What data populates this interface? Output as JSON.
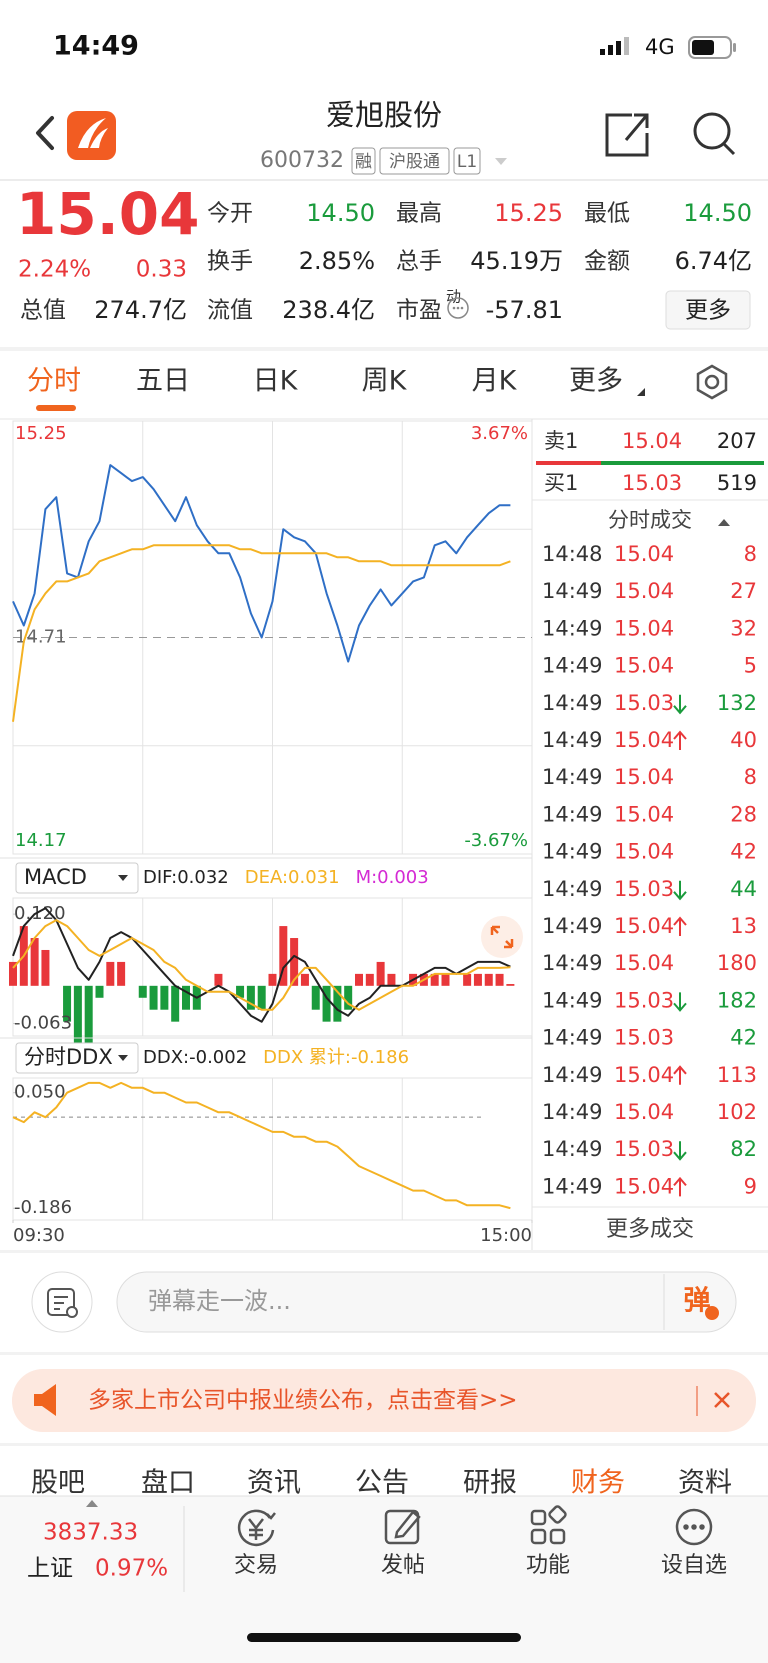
{
  "status": {
    "time": "14:49",
    "network": "4G"
  },
  "header": {
    "title": "爱旭股份",
    "code": "600732",
    "tags": [
      "融",
      "沪股通",
      "L1"
    ]
  },
  "quote": {
    "price": "15.04",
    "change_pct": "2.24%",
    "change": "0.33",
    "stats": [
      {
        "label": "今开",
        "value": "14.50",
        "color": "#1a9b3c"
      },
      {
        "label": "最高",
        "value": "15.25",
        "color": "#e8373a"
      },
      {
        "label": "最低",
        "value": "14.50",
        "color": "#1a9b3c"
      },
      {
        "label": "换手",
        "value": "2.85%"
      },
      {
        "label": "总手",
        "value": "45.19万"
      },
      {
        "label": "金额",
        "value": "6.74亿"
      },
      {
        "label": "总值",
        "value": "274.7亿"
      },
      {
        "label": "流值",
        "value": "238.4亿"
      },
      {
        "label": "市盈",
        "sup": "动",
        "value": "-57.81"
      }
    ],
    "more": "更多"
  },
  "tabs": [
    "分时",
    "五日",
    "日K",
    "周K",
    "月K",
    "更多"
  ],
  "chart_data": [
    {
      "type": "line",
      "x": [
        0,
        5,
        10,
        15,
        20,
        25,
        30,
        35,
        40,
        45,
        50,
        55,
        60,
        65,
        70,
        75,
        80,
        85,
        90,
        95,
        100,
        105,
        110,
        115,
        120,
        125,
        130,
        135,
        140,
        145,
        150,
        155,
        160,
        165,
        170,
        175,
        180,
        185,
        190,
        195,
        200,
        205,
        210,
        215,
        220,
        225,
        230
      ],
      "xlim": [
        0,
        240
      ],
      "xgrid": [
        60,
        120,
        180
      ],
      "ylim": [
        14.17,
        15.25
      ],
      "yticks": [
        15.25,
        14.71,
        14.17
      ],
      "ygrid": [
        14.98,
        14.44
      ],
      "y2lim": [
        -3.67,
        3.67
      ],
      "y2ticks": [
        {
          "value": 3.67,
          "label": "3.67%"
        },
        {
          "value": -3.67,
          "label": "-3.67%"
        }
      ],
      "series": [
        {
          "color": "#2f6fc6",
          "values": [
            14.8,
            14.74,
            14.82,
            15.03,
            15.06,
            14.87,
            14.86,
            14.95,
            15.0,
            15.14,
            15.12,
            15.1,
            15.11,
            15.08,
            15.04,
            15.0,
            15.06,
            14.99,
            14.95,
            14.92,
            14.92,
            14.86,
            14.77,
            14.71,
            14.8,
            14.98,
            14.96,
            14.95,
            14.92,
            14.82,
            14.74,
            14.65,
            14.74,
            14.79,
            14.83,
            14.79,
            14.82,
            14.85,
            14.86,
            14.94,
            14.95,
            14.92,
            14.96,
            14.99,
            15.02,
            15.04,
            15.04
          ]
        },
        {
          "color": "#f4b223",
          "values": [
            14.5,
            14.7,
            14.78,
            14.82,
            14.85,
            14.85,
            14.86,
            14.87,
            14.9,
            14.91,
            14.92,
            14.93,
            14.93,
            14.94,
            14.94,
            14.94,
            14.94,
            14.94,
            14.94,
            14.94,
            14.94,
            14.93,
            14.93,
            14.92,
            14.92,
            14.92,
            14.92,
            14.92,
            14.92,
            14.92,
            14.91,
            14.91,
            14.9,
            14.9,
            14.9,
            14.89,
            14.89,
            14.89,
            14.89,
            14.89,
            14.89,
            14.89,
            14.89,
            14.89,
            14.89,
            14.89,
            14.9
          ]
        }
      ]
    },
    {
      "type": "macd",
      "selector": "MACD",
      "legend": [
        {
          "text": "DIF:0.032",
          "color": "#222222"
        },
        {
          "text": "DEA:0.031",
          "color": "#f4b223"
        },
        {
          "text": "M:0.003",
          "color": "#d42ad4"
        }
      ],
      "x": [
        0,
        5,
        10,
        15,
        20,
        25,
        30,
        35,
        40,
        45,
        50,
        55,
        60,
        65,
        70,
        75,
        80,
        85,
        90,
        95,
        100,
        105,
        110,
        115,
        120,
        125,
        130,
        135,
        140,
        145,
        150,
        155,
        160,
        165,
        170,
        175,
        180,
        185,
        190,
        195,
        200,
        205,
        210,
        215,
        220,
        225,
        230
      ],
      "xlim": [
        0,
        240
      ],
      "xgrid": [
        60,
        120,
        180
      ],
      "ylim": [
        -0.084,
        0.147
      ],
      "yticks": [
        {
          "value": 0.12,
          "label": "0.120"
        },
        -0.063
      ],
      "bars": {
        "up_color": "#e8373a",
        "down_color": "#1a9b3c",
        "values": [
          0.04,
          0.1,
          0.08,
          0.06,
          0.0,
          -0.06,
          -0.1,
          -0.1,
          -0.02,
          0.04,
          0.04,
          0.0,
          -0.02,
          -0.04,
          -0.04,
          -0.06,
          -0.04,
          -0.04,
          0.0,
          0.02,
          0.0,
          -0.02,
          -0.04,
          -0.04,
          0.02,
          0.1,
          0.08,
          0.02,
          -0.04,
          -0.06,
          -0.06,
          -0.04,
          0.02,
          0.02,
          0.04,
          0.02,
          0.0,
          0.02,
          0.02,
          0.02,
          0.02,
          0.0,
          0.02,
          0.02,
          0.02,
          0.02,
          0.003
        ]
      },
      "series": [
        {
          "color": "#222222",
          "values": [
            0.05,
            0.1,
            0.12,
            0.13,
            0.11,
            0.07,
            0.03,
            0.01,
            0.04,
            0.08,
            0.09,
            0.08,
            0.06,
            0.04,
            0.02,
            0.0,
            -0.01,
            -0.02,
            -0.01,
            0.0,
            -0.01,
            -0.03,
            -0.05,
            -0.06,
            -0.03,
            0.03,
            0.05,
            0.04,
            0.01,
            -0.02,
            -0.04,
            -0.05,
            -0.03,
            -0.02,
            0.0,
            0.0,
            0.0,
            0.01,
            0.02,
            0.03,
            0.03,
            0.02,
            0.03,
            0.04,
            0.04,
            0.04,
            0.032
          ]
        },
        {
          "color": "#f4b223",
          "values": [
            0.03,
            0.05,
            0.08,
            0.1,
            0.11,
            0.1,
            0.08,
            0.06,
            0.05,
            0.06,
            0.07,
            0.08,
            0.07,
            0.06,
            0.04,
            0.03,
            0.01,
            0.0,
            -0.01,
            -0.01,
            -0.01,
            -0.02,
            -0.03,
            -0.04,
            -0.04,
            -0.02,
            0.01,
            0.03,
            0.03,
            0.01,
            -0.01,
            -0.03,
            -0.04,
            -0.03,
            -0.02,
            -0.01,
            0.0,
            0.0,
            0.01,
            0.02,
            0.02,
            0.02,
            0.02,
            0.03,
            0.03,
            0.03,
            0.031
          ]
        }
      ]
    },
    {
      "type": "ddx",
      "selector": "分时DDX",
      "legend": [
        {
          "text": "DDX:-0.002",
          "color": "#222222"
        },
        {
          "text": "DDX 累计:-0.186",
          "color": "#f4b223"
        }
      ],
      "x": [
        0,
        5,
        10,
        15,
        20,
        25,
        30,
        35,
        40,
        45,
        50,
        55,
        60,
        65,
        70,
        75,
        80,
        85,
        90,
        95,
        100,
        105,
        110,
        115,
        120,
        125,
        130,
        135,
        140,
        145,
        150,
        155,
        160,
        165,
        170,
        175,
        180,
        185,
        190,
        195,
        200,
        205,
        210,
        215,
        220,
        225,
        230
      ],
      "xlim": [
        0,
        240
      ],
      "xgrid": [
        60,
        120,
        180
      ],
      "xticks": [
        {
          "value": 0,
          "label": "09:30"
        },
        {
          "value": 240,
          "label": "15:00"
        }
      ],
      "ylim": [
        -0.21,
        0.08
      ],
      "yticks": [
        {
          "value": 0.05,
          "label": "0.050"
        },
        -0.186
      ],
      "series": [
        {
          "color": "#f4b223",
          "values": [
            0.0,
            -0.01,
            0.01,
            0.0,
            0.02,
            0.05,
            0.06,
            0.07,
            0.07,
            0.06,
            0.07,
            0.06,
            0.06,
            0.05,
            0.05,
            0.04,
            0.03,
            0.03,
            0.02,
            0.01,
            0.01,
            0.0,
            -0.01,
            -0.02,
            -0.03,
            -0.03,
            -0.04,
            -0.04,
            -0.05,
            -0.05,
            -0.06,
            -0.08,
            -0.1,
            -0.11,
            -0.12,
            -0.13,
            -0.14,
            -0.15,
            -0.15,
            -0.16,
            -0.17,
            -0.17,
            -0.18,
            -0.18,
            -0.18,
            -0.18,
            -0.186
          ]
        }
      ]
    }
  ],
  "order_book": {
    "ask": {
      "label": "卖1",
      "price": "15.04",
      "volume": 207
    },
    "bid": {
      "label": "买1",
      "price": "15.03",
      "volume": 519
    }
  },
  "trades": {
    "title": "分时成交",
    "more": "更多成交",
    "rows": [
      {
        "time": "14:48",
        "price": "15.04",
        "volume": 8,
        "color": "#e8373a"
      },
      {
        "time": "14:49",
        "price": "15.04",
        "volume": 27,
        "color": "#e8373a"
      },
      {
        "time": "14:49",
        "price": "15.04",
        "volume": 32,
        "color": "#e8373a"
      },
      {
        "time": "14:49",
        "price": "15.04",
        "volume": 5,
        "color": "#e8373a"
      },
      {
        "time": "14:49",
        "price": "15.03",
        "arrow": "down",
        "volume": 132,
        "color": "#1a9b3c"
      },
      {
        "time": "14:49",
        "price": "15.04",
        "arrow": "up",
        "volume": 40,
        "color": "#e8373a"
      },
      {
        "time": "14:49",
        "price": "15.04",
        "volume": 8,
        "color": "#e8373a"
      },
      {
        "time": "14:49",
        "price": "15.04",
        "volume": 28,
        "color": "#e8373a"
      },
      {
        "time": "14:49",
        "price": "15.04",
        "volume": 42,
        "color": "#e8373a"
      },
      {
        "time": "14:49",
        "price": "15.03",
        "arrow": "down",
        "volume": 44,
        "color": "#1a9b3c"
      },
      {
        "time": "14:49",
        "price": "15.04",
        "arrow": "up",
        "volume": 13,
        "color": "#e8373a"
      },
      {
        "time": "14:49",
        "price": "15.04",
        "volume": 180,
        "color": "#e8373a"
      },
      {
        "time": "14:49",
        "price": "15.03",
        "arrow": "down",
        "volume": 182,
        "color": "#1a9b3c"
      },
      {
        "time": "14:49",
        "price": "15.03",
        "volume": 42,
        "color": "#1a9b3c"
      },
      {
        "time": "14:49",
        "price": "15.04",
        "arrow": "up",
        "volume": 113,
        "color": "#e8373a"
      },
      {
        "time": "14:49",
        "price": "15.04",
        "volume": 102,
        "color": "#e8373a"
      },
      {
        "time": "14:49",
        "price": "15.03",
        "arrow": "down",
        "volume": 82,
        "color": "#1a9b3c"
      },
      {
        "time": "14:49",
        "price": "15.04",
        "arrow": "up",
        "volume": 9,
        "color": "#e8373a"
      }
    ]
  },
  "comment": {
    "placeholder": "弹幕走一波...",
    "button": "弹"
  },
  "banner": "多家上市公司中报业绩公布，点击查看>>",
  "bottom_tabs": [
    "股吧",
    "盘口",
    "资讯",
    "公告",
    "研报",
    "财务",
    "资料"
  ],
  "index": {
    "value": "3837.33",
    "name": "上证",
    "change": "0.97%"
  },
  "nav": [
    "交易",
    "发帖",
    "功能",
    "设自选"
  ]
}
